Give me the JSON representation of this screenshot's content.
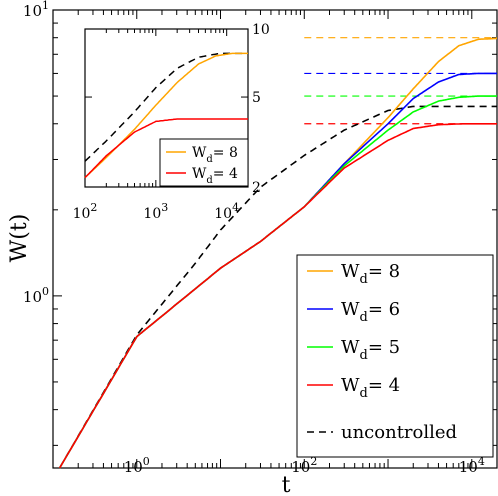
{
  "chart_data": [
    {
      "type": "line",
      "xlabel": "t",
      "ylabel": "W(t)",
      "x_scale": "log",
      "y_scale": "log",
      "xlim": [
        0.1,
        20000
      ],
      "ylim": [
        0.25,
        10
      ],
      "x_ticks": [
        {
          "value": 1,
          "base": "10",
          "exp": "0"
        },
        {
          "value": 100,
          "base": "10",
          "exp": "2"
        },
        {
          "value": 10000,
          "base": "10",
          "exp": "4"
        }
      ],
      "y_ticks": [
        {
          "value": 1,
          "base": "10",
          "exp": "0"
        },
        {
          "value": 10,
          "base": "10",
          "exp": "1"
        }
      ],
      "legend_position": "bottom-right",
      "series": [
        {
          "name": "W_d= 8",
          "legend_main": "W",
          "legend_sub": "d",
          "legend_rest": "= 8",
          "color": "#ffa500",
          "dash": false,
          "points": [
            [
              0.12,
              0.25
            ],
            [
              1,
              0.72
            ],
            [
              10,
              1.25
            ],
            [
              30,
              1.55
            ],
            [
              100,
              2.05
            ],
            [
              300,
              2.9
            ],
            [
              1000,
              4.2
            ],
            [
              2000,
              5.3
            ],
            [
              4000,
              6.6
            ],
            [
              7000,
              7.5
            ],
            [
              12000,
              7.9
            ],
            [
              20000,
              7.95
            ]
          ],
          "target": 8
        },
        {
          "name": "W_d= 6",
          "legend_main": "W",
          "legend_sub": "d",
          "legend_rest": "= 6",
          "color": "#0000ff",
          "dash": false,
          "points": [
            [
              0.12,
              0.25
            ],
            [
              1,
              0.72
            ],
            [
              10,
              1.25
            ],
            [
              30,
              1.55
            ],
            [
              100,
              2.05
            ],
            [
              300,
              2.9
            ],
            [
              1000,
              4.0
            ],
            [
              2000,
              4.9
            ],
            [
              4000,
              5.6
            ],
            [
              7000,
              5.95
            ],
            [
              12000,
              6.0
            ],
            [
              20000,
              6.0
            ]
          ],
          "target": 6
        },
        {
          "name": "W_d= 5",
          "legend_main": "W",
          "legend_sub": "d",
          "legend_rest": "= 5",
          "color": "#00ff00",
          "dash": false,
          "points": [
            [
              0.12,
              0.25
            ],
            [
              1,
              0.72
            ],
            [
              10,
              1.25
            ],
            [
              30,
              1.55
            ],
            [
              100,
              2.05
            ],
            [
              300,
              2.85
            ],
            [
              1000,
              3.8
            ],
            [
              2000,
              4.4
            ],
            [
              4000,
              4.8
            ],
            [
              7000,
              4.95
            ],
            [
              12000,
              5.0
            ],
            [
              20000,
              5.0
            ]
          ],
          "target": 5
        },
        {
          "name": "W_d= 4",
          "legend_main": "W",
          "legend_sub": "d",
          "legend_rest": "= 4",
          "color": "#ff0000",
          "dash": false,
          "points": [
            [
              0.12,
              0.25
            ],
            [
              1,
              0.72
            ],
            [
              10,
              1.25
            ],
            [
              30,
              1.55
            ],
            [
              100,
              2.05
            ],
            [
              300,
              2.8
            ],
            [
              1000,
              3.5
            ],
            [
              2000,
              3.85
            ],
            [
              4000,
              3.97
            ],
            [
              8000,
              4.0
            ],
            [
              20000,
              4.0
            ]
          ],
          "target": 4
        },
        {
          "name": "uncontrolled",
          "legend_main": "uncontrolled",
          "legend_sub": "",
          "legend_rest": "",
          "color": "#000000",
          "dash": true,
          "points": [
            [
              0.12,
              0.25
            ],
            [
              1,
              0.73
            ],
            [
              5,
              1.3
            ],
            [
              10,
              1.7
            ],
            [
              30,
              2.4
            ],
            [
              100,
              3.1
            ],
            [
              300,
              3.8
            ],
            [
              1000,
              4.45
            ],
            [
              2000,
              4.6
            ],
            [
              5000,
              4.6
            ],
            [
              20000,
              4.6
            ]
          ]
        }
      ],
      "targets": [
        {
          "value": 8,
          "color": "#ffa500"
        },
        {
          "value": 6,
          "color": "#0000ff"
        },
        {
          "value": 5,
          "color": "#00ff00"
        },
        {
          "value": 4,
          "color": "#ff0000"
        }
      ]
    },
    {
      "type": "line",
      "role": "inset",
      "x_scale": "log",
      "y_scale": "log",
      "xlim": [
        100,
        20000
      ],
      "ylim": [
        2,
        10
      ],
      "x_ticks": [
        {
          "value": 100,
          "base": "10",
          "exp": "2"
        },
        {
          "value": 1000,
          "base": "10",
          "exp": "3"
        },
        {
          "value": 10000,
          "base": "10",
          "exp": "4"
        }
      ],
      "y_ticks": [
        {
          "value": 2,
          "label": "2"
        },
        {
          "value": 5,
          "label": "5"
        },
        {
          "value": 10,
          "label": "10"
        }
      ],
      "legend_position": "bottom-right",
      "series": [
        {
          "name": "W_d= 8",
          "legend_main": "W",
          "legend_sub": "d",
          "legend_rest": "= 8",
          "color": "#ffa500",
          "dash": false,
          "points": [
            [
              100,
              2.2
            ],
            [
              200,
              2.7
            ],
            [
              500,
              3.6
            ],
            [
              1000,
              4.6
            ],
            [
              2000,
              5.8
            ],
            [
              4000,
              7.0
            ],
            [
              7000,
              7.6
            ],
            [
              12000,
              7.8
            ],
            [
              20000,
              7.8
            ]
          ]
        },
        {
          "name": "W_d= 4",
          "legend_main": "W",
          "legend_sub": "d",
          "legend_rest": "= 4",
          "color": "#ff0000",
          "dash": false,
          "points": [
            [
              100,
              2.2
            ],
            [
              200,
              2.75
            ],
            [
              500,
              3.5
            ],
            [
              1000,
              3.9
            ],
            [
              2000,
              4.0
            ],
            [
              20000,
              4.0
            ]
          ]
        },
        {
          "name": "uncontrolled",
          "legend_main": "",
          "legend_sub": "",
          "legend_rest": "",
          "color": "#000000",
          "dash": true,
          "points": [
            [
              100,
              2.6
            ],
            [
              200,
              3.2
            ],
            [
              500,
              4.3
            ],
            [
              1000,
              5.5
            ],
            [
              2000,
              6.7
            ],
            [
              4000,
              7.5
            ],
            [
              8000,
              7.8
            ],
            [
              20000,
              7.8
            ]
          ]
        }
      ],
      "legend_series": [
        0,
        1
      ]
    }
  ]
}
